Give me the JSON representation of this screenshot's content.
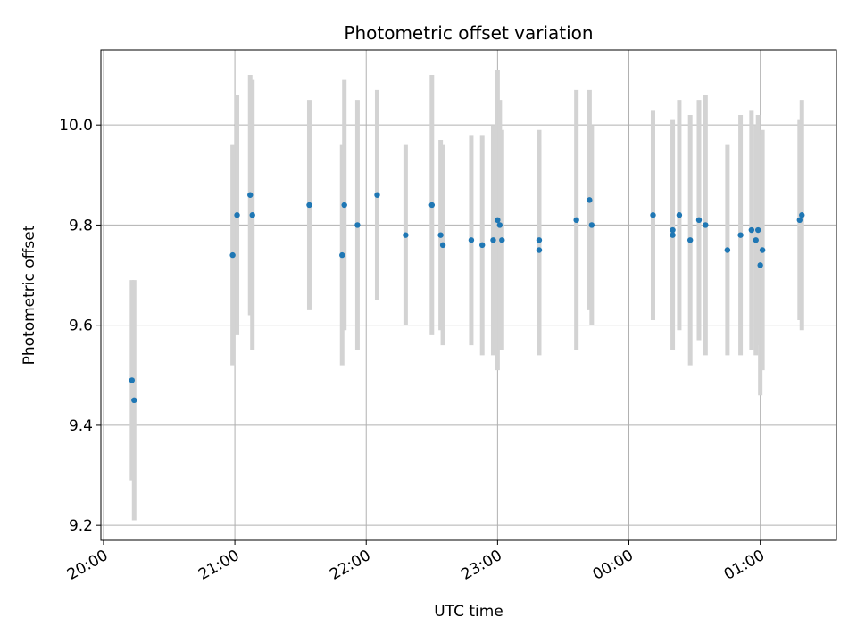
{
  "chart_data": {
    "type": "scatter",
    "title": "Photometric offset variation",
    "xlabel": "UTC time",
    "ylabel": "Photometric offset",
    "grid": true,
    "x_tick_labels": [
      "20:00",
      "21:00",
      "22:00",
      "23:00",
      "00:00",
      "01:00"
    ],
    "x_tick_hours": [
      20,
      21,
      22,
      23,
      24,
      25
    ],
    "y_ticks": [
      9.2,
      9.4,
      9.6,
      9.8,
      10.0
    ],
    "y_tick_labels": [
      "9.2",
      "9.4",
      "9.6",
      "9.8",
      "10.0"
    ],
    "xlim_hours": [
      19.98,
      25.58
    ],
    "ylim": [
      9.17,
      10.15
    ],
    "marker_color": "#1f77b4",
    "errorbar_color": "#d3d3d3",
    "series": [
      {
        "x_time": [
          "20:13",
          "20:14",
          "20:59",
          "21:01",
          "21:07",
          "21:08",
          "21:34",
          "21:49",
          "21:50",
          "21:56",
          "22:05",
          "22:18",
          "22:30",
          "22:34",
          "22:35",
          "22:48",
          "22:53",
          "22:58",
          "23:00",
          "23:01",
          "23:02",
          "23:19",
          "23:19",
          "23:36",
          "23:42",
          "23:43",
          "00:11",
          "00:20",
          "00:20",
          "00:23",
          "00:28",
          "00:32",
          "00:35",
          "00:45",
          "00:51",
          "00:56",
          "00:58",
          "00:59",
          "01:00",
          "01:01",
          "01:18",
          "01:19"
        ],
        "y": [
          9.49,
          9.45,
          9.74,
          9.82,
          9.86,
          9.82,
          9.84,
          9.74,
          9.84,
          9.8,
          9.86,
          9.78,
          9.84,
          9.78,
          9.76,
          9.77,
          9.76,
          9.77,
          9.81,
          9.8,
          9.77,
          9.75,
          9.77,
          9.81,
          9.85,
          9.8,
          9.82,
          9.78,
          9.79,
          9.82,
          9.77,
          9.81,
          9.8,
          9.75,
          9.78,
          9.79,
          9.77,
          9.79,
          9.72,
          9.75,
          9.81,
          9.82
        ],
        "yerr": [
          0.2,
          0.24,
          0.22,
          0.24,
          0.24,
          0.27,
          0.21,
          0.22,
          0.25,
          0.25,
          0.21,
          0.18,
          0.26,
          0.19,
          0.2,
          0.21,
          0.22,
          0.23,
          0.3,
          0.25,
          0.22,
          0.21,
          0.22,
          0.26,
          0.22,
          0.2,
          0.21,
          0.23,
          0.2,
          0.23,
          0.25,
          0.24,
          0.26,
          0.21,
          0.24,
          0.24,
          0.23,
          0.23,
          0.26,
          0.24,
          0.2,
          0.23
        ]
      }
    ]
  }
}
